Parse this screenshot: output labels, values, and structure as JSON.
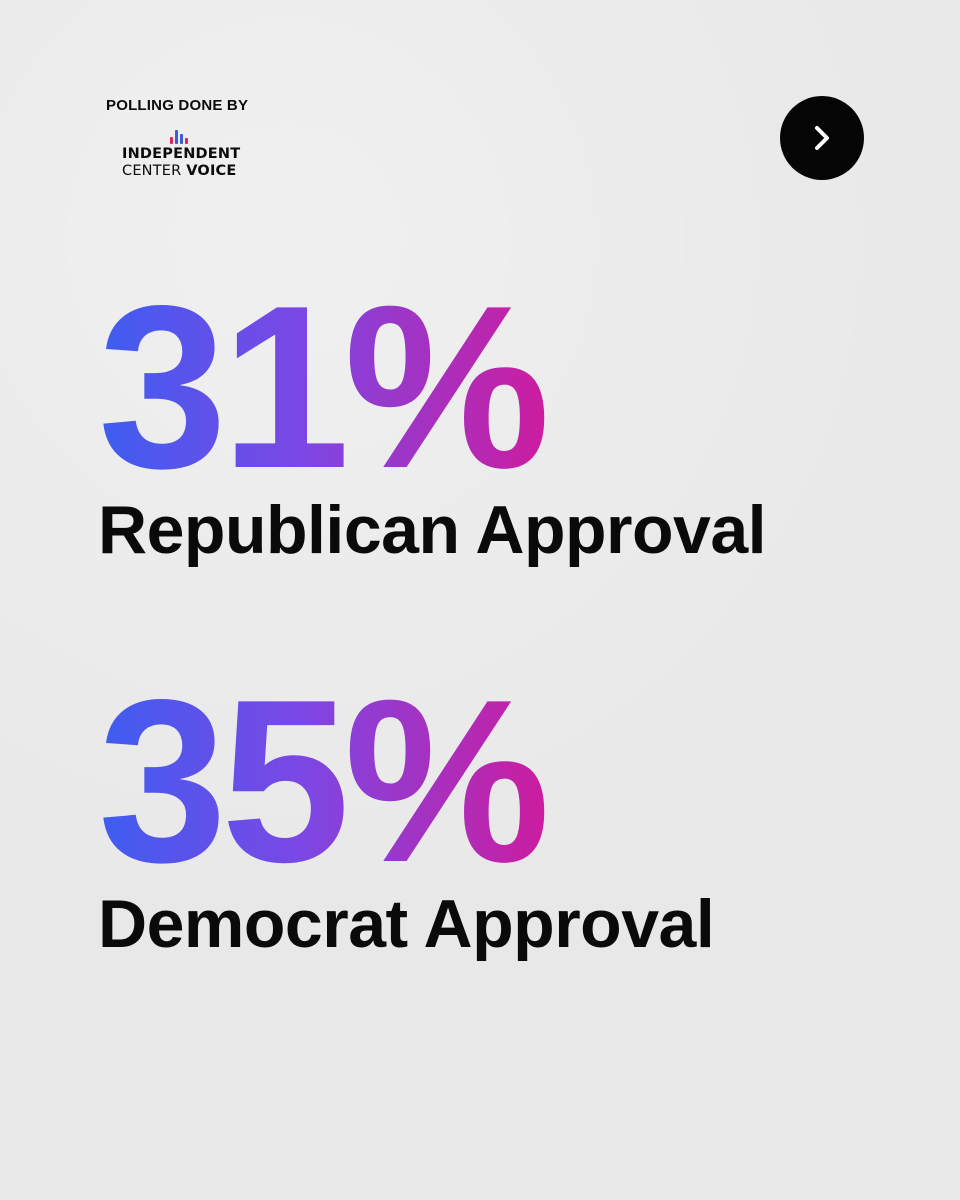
{
  "header": {
    "polling_label": "POLLING DONE BY",
    "logo": {
      "line1": "INDEPENDENT",
      "line2_regular": "CENTER ",
      "line2_bold": "VOICE",
      "bar_colors": [
        "#e0245e",
        "#3b5bdb",
        "#3b5bdb",
        "#e0245e"
      ]
    }
  },
  "navigation": {
    "next_icon": "chevron-right-icon"
  },
  "stats": [
    {
      "value": "31%",
      "label": "Republican Approval"
    },
    {
      "value": "35%",
      "label": "Democrat Approval"
    }
  ],
  "colors": {
    "gradient_start": "#3e5df0",
    "gradient_mid": "#7c47e4",
    "gradient_end": "#cf1b9c",
    "background": "#e8e8e8",
    "text": "#0a0a0a"
  }
}
